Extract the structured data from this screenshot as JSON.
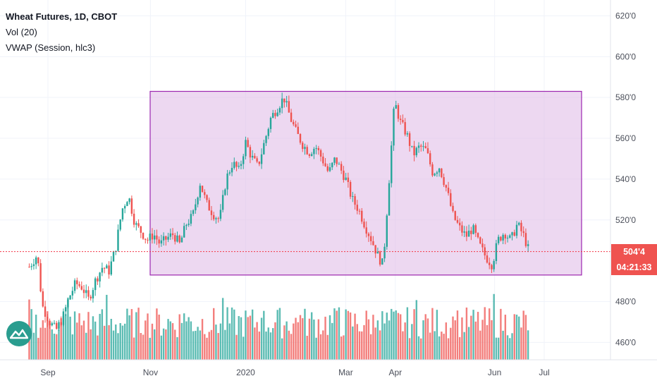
{
  "legend": {
    "title": "Wheat Futures, 1D, CBOT",
    "indicator1": "Vol (20)",
    "indicator2": "VWAP (Session, hlc3)"
  },
  "badges": {
    "price": "504'4",
    "countdown": "04:21:33"
  },
  "colors": {
    "up": "#26a69a",
    "down": "#ef5350",
    "range_fill": "#e1bee7",
    "range_border": "#9c27b0",
    "price_line": "#f23645",
    "badge_bg": "#ef5350"
  },
  "icons": [
    "tradingview-logo-icon"
  ],
  "chart_data": {
    "type": "candlestick",
    "title": "Wheat Futures, 1D, CBOT",
    "y_ticks": [
      "620'0",
      "600'0",
      "580'0",
      "560'0",
      "540'0",
      "520'0",
      "480'0",
      "460'0"
    ],
    "ylim": [
      457,
      625
    ],
    "x_ticks": [
      "Sep",
      "Nov",
      "2020",
      "Mar",
      "Apr",
      "Jun",
      "Jul"
    ],
    "last_price": 504.5,
    "last_price_label": "504'4",
    "range_box": {
      "price_high": 583,
      "price_low": 493
    },
    "close_path": [
      [
        "Aug 20",
        497
      ],
      [
        "Aug 25",
        503
      ],
      [
        "Aug 28",
        478
      ],
      [
        "Sep 2",
        470
      ],
      [
        "Sep 6",
        466
      ],
      [
        "Sep 10",
        472
      ],
      [
        "Sep 14",
        482
      ],
      [
        "Sep 18",
        489
      ],
      [
        "Sep 22",
        487
      ],
      [
        "Sep 26",
        481
      ],
      [
        "Sep 30",
        490
      ],
      [
        "Oct 4",
        497
      ],
      [
        "Oct 8",
        495
      ],
      [
        "Oct 12",
        506
      ],
      [
        "Oct 16",
        525
      ],
      [
        "Oct 20",
        532
      ],
      [
        "Oct 24",
        518
      ],
      [
        "Oct 28",
        514
      ],
      [
        "Nov 1",
        510
      ],
      [
        "Nov 5",
        513
      ],
      [
        "Nov 9",
        508
      ],
      [
        "Nov 13",
        511
      ],
      [
        "Nov 17",
        513
      ],
      [
        "Nov 21",
        508
      ],
      [
        "Nov 25",
        518
      ],
      [
        "Nov 29",
        522
      ],
      [
        "Dec 3",
        538
      ],
      [
        "Dec 7",
        528
      ],
      [
        "Dec 11",
        523
      ],
      [
        "Dec 15",
        520
      ],
      [
        "Dec 19",
        540
      ],
      [
        "Dec 23",
        548
      ],
      [
        "Dec 27",
        544
      ],
      [
        "Dec 31",
        558
      ],
      [
        "Jan 4",
        551
      ],
      [
        "Jan 8",
        546
      ],
      [
        "Jan 12",
        558
      ],
      [
        "Jan 16",
        570
      ],
      [
        "Jan 20",
        575
      ],
      [
        "Jan 24",
        580
      ],
      [
        "Jan 28",
        570
      ],
      [
        "Feb 1",
        563
      ],
      [
        "Feb 5",
        557
      ],
      [
        "Feb 9",
        553
      ],
      [
        "Feb 13",
        556
      ],
      [
        "Feb 17",
        550
      ],
      [
        "Feb 21",
        543
      ],
      [
        "Feb 25",
        550
      ],
      [
        "Mar 1",
        540
      ],
      [
        "Mar 5",
        530
      ],
      [
        "Mar 9",
        525
      ],
      [
        "Mar 13",
        517
      ],
      [
        "Mar 17",
        510
      ],
      [
        "Mar 21",
        502
      ],
      [
        "Mar 24",
        498
      ],
      [
        "Mar 27",
        532
      ],
      [
        "Mar 31",
        578
      ],
      [
        "Apr 4",
        568
      ],
      [
        "Apr 8",
        562
      ],
      [
        "Apr 12",
        552
      ],
      [
        "Apr 16",
        556
      ],
      [
        "Apr 20",
        554
      ],
      [
        "Apr 24",
        543
      ],
      [
        "Apr 28",
        546
      ],
      [
        "May 2",
        535
      ],
      [
        "May 6",
        522
      ],
      [
        "May 10",
        516
      ],
      [
        "May 14",
        512
      ],
      [
        "May 18",
        516
      ],
      [
        "May 22",
        508
      ],
      [
        "May 26",
        502
      ],
      [
        "May 30",
        498
      ],
      [
        "Jun 3",
        510
      ],
      [
        "Jun 7",
        514
      ],
      [
        "Jun 11",
        510
      ],
      [
        "Jun 15",
        518
      ],
      [
        "Jun 19",
        512
      ],
      [
        "Jun 22",
        505
      ]
    ],
    "volume_note": "volume bars colored by candle direction"
  }
}
